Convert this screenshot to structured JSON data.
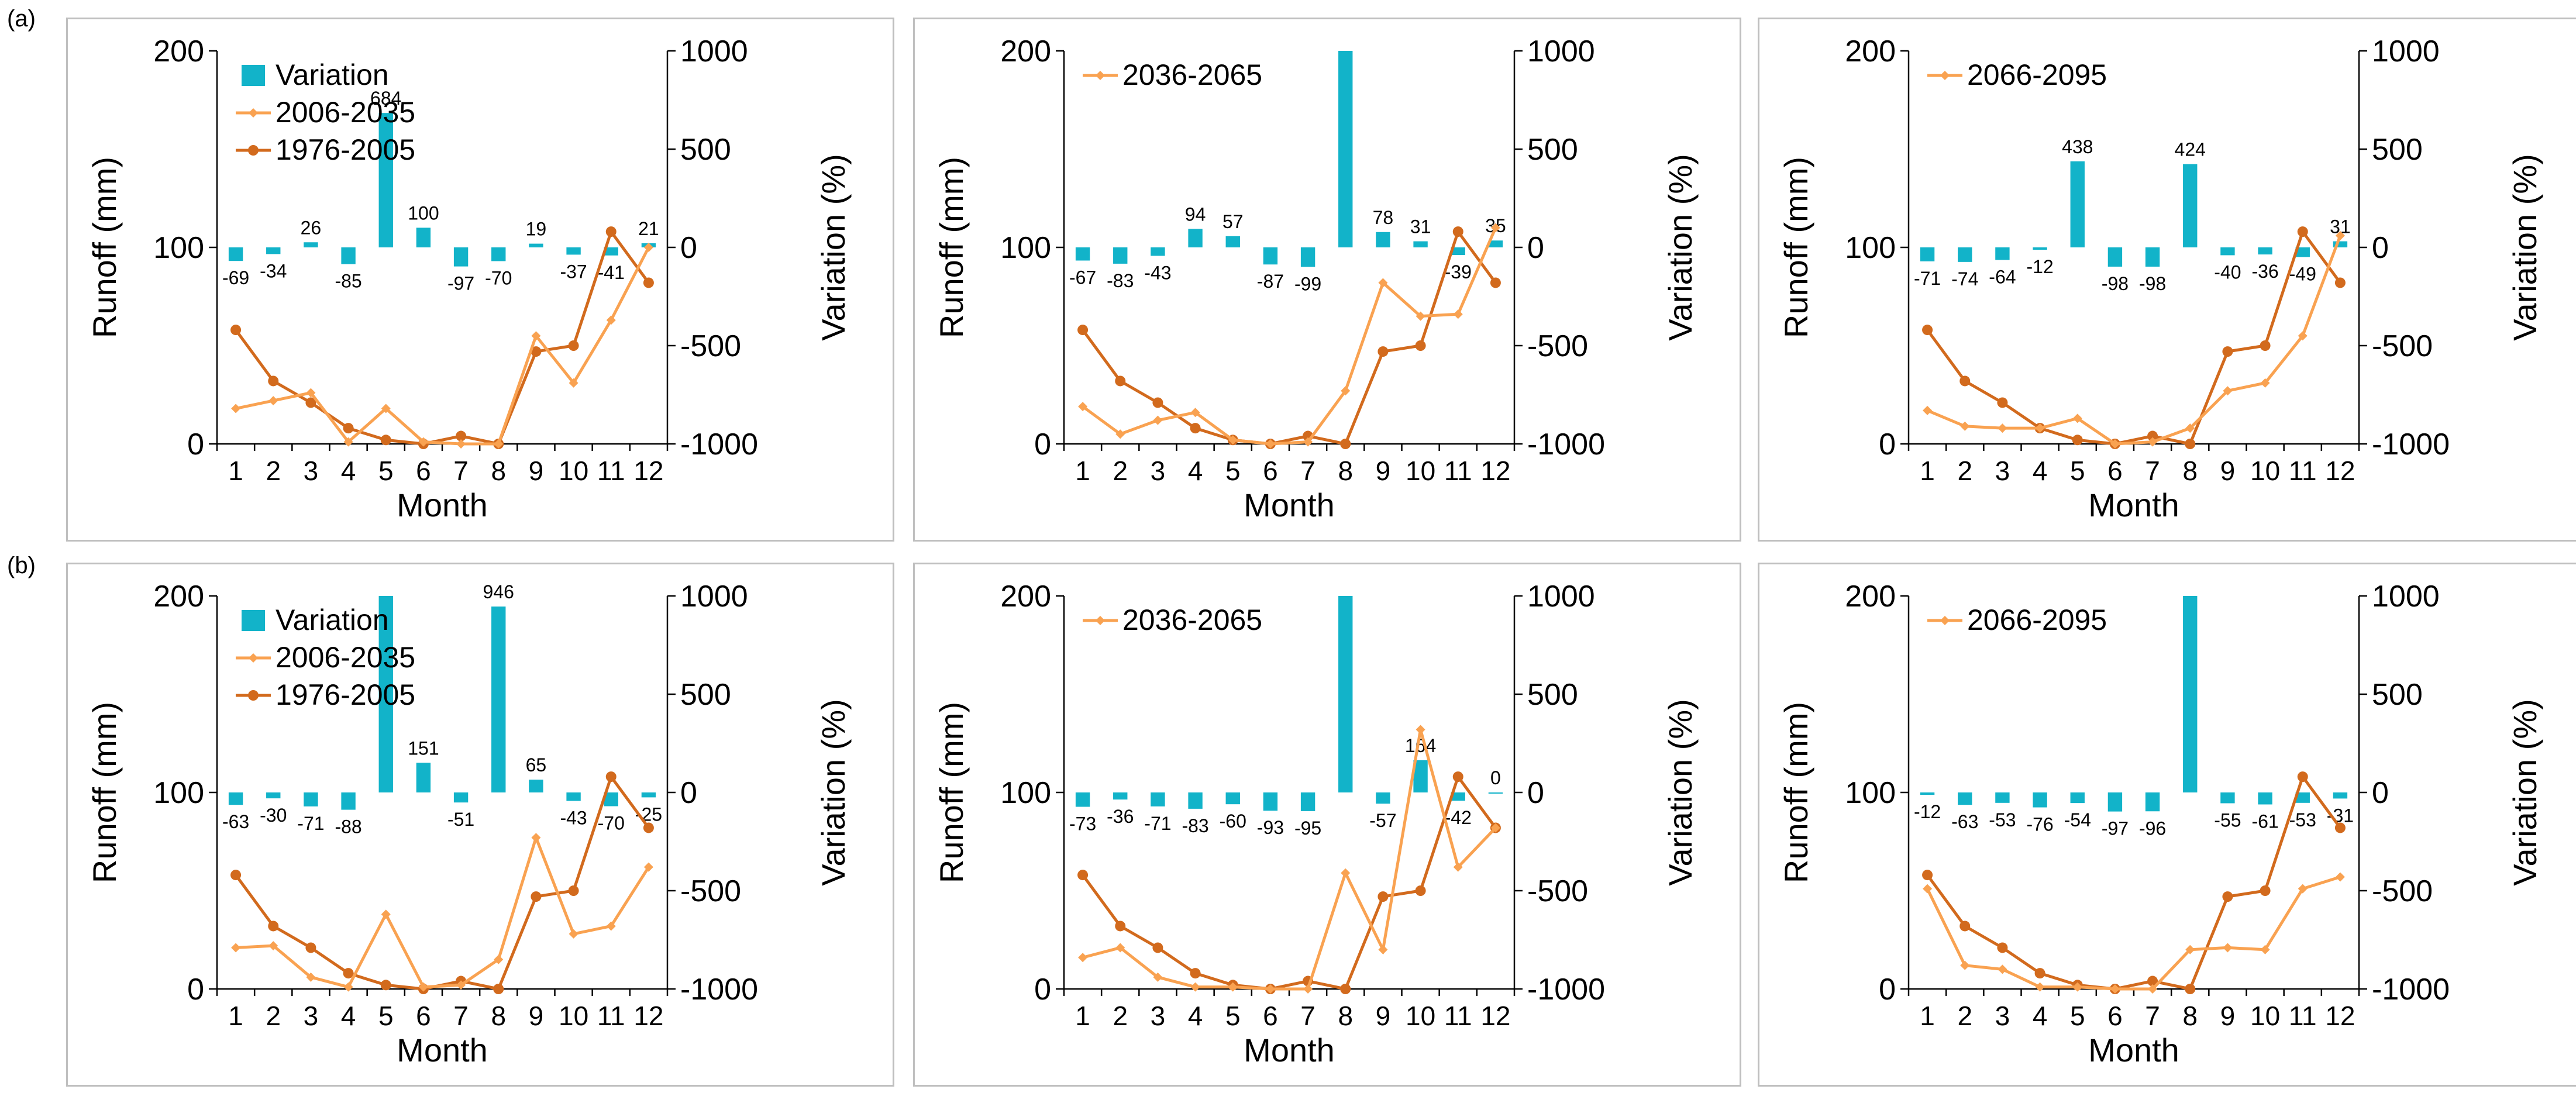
{
  "figure_labels": {
    "a": "(a)",
    "b": "(b)"
  },
  "colors": {
    "variation": "#12b3c9",
    "future": "#f9a251",
    "baseline": "#d26a1d",
    "axis": "#000000",
    "frame": "#bfbfbf"
  },
  "chart_data": [
    {
      "id": "a1",
      "row_label": "(a)",
      "type": "bar+line",
      "xlabel": "Month",
      "ylabel": "Runoff (mm)",
      "y2label": "Variation (%)",
      "categories": [
        "1",
        "2",
        "3",
        "4",
        "5",
        "6",
        "7",
        "8",
        "9",
        "10",
        "11",
        "12"
      ],
      "ylim": [
        0,
        200
      ],
      "yticks": [
        "0",
        "100",
        "200"
      ],
      "y2lim": [
        -1000,
        1000
      ],
      "y2ticks": [
        "-1000",
        "-500",
        "0",
        "500",
        "1000"
      ],
      "legend": [
        "Variation",
        "2006-2035",
        "1976-2005"
      ],
      "variation": {
        "name": "Variation",
        "values": [
          -69,
          -34,
          26,
          -85,
          684,
          100,
          -97,
          -70,
          19,
          -37,
          -41,
          21
        ]
      },
      "variation_labels": [
        "-69",
        "-34",
        "26",
        "-85",
        "684",
        "100",
        "-97",
        "-70",
        "19",
        "-37",
        "-41",
        "21"
      ],
      "future": {
        "name": "2006-2035",
        "values": [
          18,
          22,
          26,
          1,
          18,
          1,
          0,
          0,
          55,
          31,
          63,
          100
        ]
      },
      "baseline": {
        "name": "1976-2005",
        "values": [
          58,
          32,
          21,
          8,
          2,
          0,
          4,
          0,
          47,
          50,
          108,
          82
        ]
      }
    },
    {
      "id": "a2",
      "type": "bar+line",
      "xlabel": "Month",
      "ylabel": "Runoff (mm)",
      "y2label": "Variation (%)",
      "categories": [
        "1",
        "2",
        "3",
        "4",
        "5",
        "6",
        "7",
        "8",
        "9",
        "10",
        "11",
        "12"
      ],
      "ylim": [
        0,
        200
      ],
      "yticks": [
        "0",
        "100",
        "200"
      ],
      "y2lim": [
        -1000,
        1000
      ],
      "y2ticks": [
        "-1000",
        "-500",
        "0",
        "500",
        "1000"
      ],
      "legend": [
        "2036-2065"
      ],
      "variation": {
        "name": "Variation",
        "values": [
          -67,
          -83,
          -43,
          94,
          57,
          -87,
          -99,
          1000,
          78,
          31,
          -39,
          35
        ]
      },
      "variation_labels": [
        "-67",
        "-83",
        "-43",
        "94",
        "57",
        "-87",
        "-99",
        "",
        "78",
        "31",
        "-39",
        "35"
      ],
      "future": {
        "name": "2036-2065",
        "values": [
          19,
          5,
          12,
          16,
          2,
          0,
          1,
          27,
          82,
          65,
          66,
          110
        ]
      },
      "baseline": {
        "name": "1976-2005",
        "values": [
          58,
          32,
          21,
          8,
          2,
          0,
          4,
          0,
          47,
          50,
          108,
          82
        ]
      }
    },
    {
      "id": "a3",
      "type": "bar+line",
      "xlabel": "Month",
      "ylabel": "Runoff (mm)",
      "y2label": "Variation (%)",
      "categories": [
        "1",
        "2",
        "3",
        "4",
        "5",
        "6",
        "7",
        "8",
        "9",
        "10",
        "11",
        "12"
      ],
      "ylim": [
        0,
        200
      ],
      "yticks": [
        "0",
        "100",
        "200"
      ],
      "y2lim": [
        -1000,
        1000
      ],
      "y2ticks": [
        "-1000",
        "-500",
        "0",
        "500",
        "1000"
      ],
      "legend": [
        "2066-2095"
      ],
      "variation": {
        "name": "Variation",
        "values": [
          -71,
          -74,
          -64,
          -12,
          438,
          -98,
          -98,
          424,
          -40,
          -36,
          -49,
          31
        ]
      },
      "variation_labels": [
        "-71",
        "-74",
        "-64",
        "-12",
        "438",
        "-98",
        "-98",
        "424",
        "-40",
        "-36",
        "-49",
        "31"
      ],
      "future": {
        "name": "2066-2095",
        "values": [
          17,
          9,
          8,
          8,
          13,
          0,
          1,
          8,
          27,
          31,
          55,
          106
        ]
      },
      "baseline": {
        "name": "1976-2005",
        "values": [
          58,
          32,
          21,
          8,
          2,
          0,
          4,
          0,
          47,
          50,
          108,
          82
        ]
      }
    },
    {
      "id": "b1",
      "row_label": "(b)",
      "type": "bar+line",
      "xlabel": "Month",
      "ylabel": "Runoff (mm)",
      "y2label": "Variation (%)",
      "categories": [
        "1",
        "2",
        "3",
        "4",
        "5",
        "6",
        "7",
        "8",
        "9",
        "10",
        "11",
        "12"
      ],
      "ylim": [
        0,
        200
      ],
      "yticks": [
        "0",
        "100",
        "200"
      ],
      "y2lim": [
        -1000,
        1000
      ],
      "y2ticks": [
        "-1000",
        "-500",
        "0",
        "500",
        "1000"
      ],
      "legend": [
        "Variation",
        "2006-2035",
        "1976-2005"
      ],
      "variation": {
        "name": "Variation",
        "values": [
          -63,
          -30,
          -71,
          -88,
          1000,
          151,
          -51,
          946,
          65,
          -43,
          -70,
          -25
        ]
      },
      "variation_labels": [
        "-63",
        "-30",
        "-71",
        "-88",
        "",
        "151",
        "-51",
        "946",
        "65",
        "-43",
        "-70",
        "-25"
      ],
      "future": {
        "name": "2006-2035",
        "values": [
          21,
          22,
          6,
          1,
          38,
          1,
          2,
          15,
          77,
          28,
          32,
          62
        ]
      },
      "baseline": {
        "name": "1976-2005",
        "values": [
          58,
          32,
          21,
          8,
          2,
          0,
          4,
          0,
          47,
          50,
          108,
          82
        ]
      }
    },
    {
      "id": "b2",
      "type": "bar+line",
      "xlabel": "Month",
      "ylabel": "Runoff (mm)",
      "y2label": "Variation (%)",
      "categories": [
        "1",
        "2",
        "3",
        "4",
        "5",
        "6",
        "7",
        "8",
        "9",
        "10",
        "11",
        "12"
      ],
      "ylim": [
        0,
        200
      ],
      "yticks": [
        "0",
        "100",
        "200"
      ],
      "y2lim": [
        -1000,
        1000
      ],
      "y2ticks": [
        "-1000",
        "-500",
        "0",
        "500",
        "1000"
      ],
      "legend": [
        "2036-2065"
      ],
      "variation": {
        "name": "Variation",
        "values": [
          -73,
          -36,
          -71,
          -83,
          -60,
          -93,
          -95,
          1000,
          -57,
          164,
          -42,
          0
        ]
      },
      "variation_labels": [
        "-73",
        "-36",
        "-71",
        "-83",
        "-60",
        "-93",
        "-95",
        "",
        "-57",
        "164",
        "-42",
        "0"
      ],
      "future": {
        "name": "2036-2065",
        "values": [
          16,
          21,
          6,
          1,
          1,
          0,
          0,
          59,
          20,
          132,
          62,
          82
        ]
      },
      "baseline": {
        "name": "1976-2005",
        "values": [
          58,
          32,
          21,
          8,
          2,
          0,
          4,
          0,
          47,
          50,
          108,
          82
        ]
      }
    },
    {
      "id": "b3",
      "type": "bar+line",
      "xlabel": "Month",
      "ylabel": "Runoff (mm)",
      "y2label": "Variation (%)",
      "categories": [
        "1",
        "2",
        "3",
        "4",
        "5",
        "6",
        "7",
        "8",
        "9",
        "10",
        "11",
        "12"
      ],
      "ylim": [
        0,
        200
      ],
      "yticks": [
        "0",
        "100",
        "200"
      ],
      "y2lim": [
        -1000,
        1000
      ],
      "y2ticks": [
        "-1000",
        "-500",
        "0",
        "500",
        "1000"
      ],
      "legend": [
        "2066-2095"
      ],
      "variation": {
        "name": "Variation",
        "values": [
          -12,
          -63,
          -53,
          -76,
          -54,
          -97,
          -96,
          1000,
          -55,
          -61,
          -53,
          -31
        ]
      },
      "variation_labels": [
        "-12",
        "-63",
        "-53",
        "-76",
        "-54",
        "-97",
        "-96",
        "",
        "-55",
        "-61",
        "-53",
        "-31"
      ],
      "future": {
        "name": "2066-2095",
        "values": [
          51,
          12,
          10,
          1,
          1,
          0,
          0,
          20,
          21,
          20,
          51,
          57
        ]
      },
      "baseline": {
        "name": "1976-2005",
        "values": [
          58,
          32,
          21,
          8,
          2,
          0,
          4,
          0,
          47,
          50,
          108,
          82
        ]
      }
    }
  ]
}
